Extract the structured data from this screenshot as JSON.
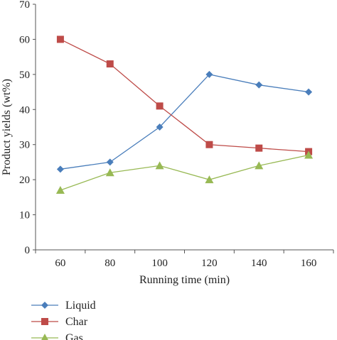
{
  "chart_data": {
    "type": "line",
    "x": [
      60,
      80,
      100,
      120,
      140,
      160
    ],
    "xlabel": "Running time (min)",
    "ylabel": "Product yields (wt%)",
    "ylim": [
      0,
      70
    ],
    "yticks": [
      0,
      10,
      20,
      30,
      40,
      50,
      60,
      70
    ],
    "xticks": [
      60,
      80,
      100,
      120,
      140,
      160
    ],
    "grid": false,
    "legend_position": "bottom-left",
    "series": [
      {
        "name": "Liquid",
        "values": [
          23,
          25,
          35,
          50,
          47,
          45
        ],
        "color": "#4a7ebb",
        "marker": "diamond"
      },
      {
        "name": "Char",
        "values": [
          60,
          53,
          41,
          30,
          29,
          28
        ],
        "color": "#be4b48",
        "marker": "square"
      },
      {
        "name": "Gas",
        "values": [
          17,
          22,
          24,
          20,
          24,
          27
        ],
        "color": "#98b954",
        "marker": "triangle"
      }
    ]
  }
}
